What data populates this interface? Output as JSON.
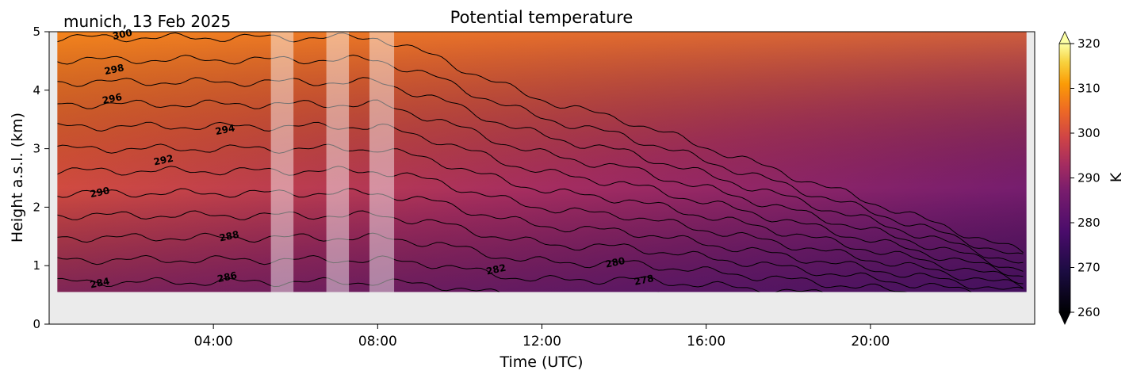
{
  "chart_data": {
    "type": "heatmap",
    "subtype": "filled-contour",
    "title": "Potential temperature",
    "subtitle": "munich, 13 Feb 2025",
    "xlabel": "Time (UTC)",
    "ylabel": "Height a.s.l. (km)",
    "xlim_hours": [
      0,
      24
    ],
    "ylim_km": [
      0,
      5
    ],
    "data_y_range_km": [
      0.55,
      5
    ],
    "xticks": [
      {
        "h": 4,
        "label": "04:00"
      },
      {
        "h": 8,
        "label": "08:00"
      },
      {
        "h": 12,
        "label": "12:00"
      },
      {
        "h": 16,
        "label": "16:00"
      },
      {
        "h": 20,
        "label": "20:00"
      }
    ],
    "yticks": [
      0,
      1,
      2,
      3,
      4,
      5
    ],
    "colorbar": {
      "label": "K",
      "colormap": "inferno",
      "range": [
        260,
        320
      ],
      "ticks": [
        260,
        270,
        280,
        290,
        300,
        310,
        320
      ],
      "extend": "both"
    },
    "masked_periods_hours": [
      [
        5.4,
        5.95
      ],
      [
        6.75,
        7.3
      ],
      [
        7.8,
        8.4
      ]
    ],
    "contour_levels": [
      278,
      280,
      282,
      284,
      286,
      288,
      290,
      292,
      294,
      296,
      298,
      300
    ],
    "contour_labels": [
      {
        "text": "300",
        "h": 1.8,
        "km": 4.9
      },
      {
        "text": "298",
        "h": 1.6,
        "km": 4.3
      },
      {
        "text": "296",
        "h": 1.55,
        "km": 3.8
      },
      {
        "text": "294",
        "h": 4.3,
        "km": 3.27
      },
      {
        "text": "292",
        "h": 2.8,
        "km": 2.75
      },
      {
        "text": "290",
        "h": 1.25,
        "km": 2.2
      },
      {
        "text": "288",
        "h": 4.4,
        "km": 1.45
      },
      {
        "text": "286",
        "h": 4.35,
        "km": 0.75
      },
      {
        "text": "284",
        "h": 1.25,
        "km": 0.65
      },
      {
        "text": "282",
        "h": 10.9,
        "km": 0.88
      },
      {
        "text": "280",
        "h": 13.8,
        "km": 1.0
      },
      {
        "text": "278",
        "h": 14.5,
        "km": 0.7
      }
    ],
    "grid": false
  }
}
